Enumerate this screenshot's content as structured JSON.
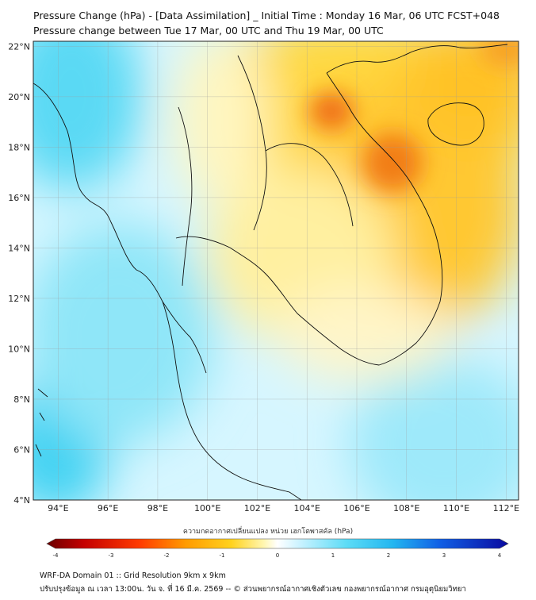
{
  "header": {
    "title_line1": "Pressure Change (hPa) - [Data Assimilation] _ Initial Time : Monday 16 Mar, 06 UTC FCST+048",
    "title_line2": "Pressure change between Tue 17 Mar, 00 UTC and Thu 19 Mar, 00 UTC"
  },
  "map": {
    "lon_range": [
      93,
      112.5
    ],
    "lat_range": [
      4,
      22.2
    ],
    "lat_labels": [
      "22°N",
      "20°N",
      "18°N",
      "16°N",
      "14°N",
      "12°N",
      "10°N",
      "8°N",
      "6°N",
      "4°N"
    ],
    "lon_labels": [
      "94°E",
      "96°E",
      "98°E",
      "100°E",
      "102°E",
      "104°E",
      "106°E",
      "108°E",
      "110°E",
      "112°E"
    ],
    "colors": {
      "ocean_base": "#bdeeff",
      "positive": "#40d8f4",
      "negative": "#ffb000",
      "strong_negative": "#f06a10"
    }
  },
  "colorbar": {
    "title": "ความกดอากาศเปลี่ยนแปลง หน่วย เฮกโตพาสคัล (hPa)",
    "ticks": [
      "-4",
      "-3",
      "-2",
      "-1",
      "0",
      "1",
      "2",
      "3",
      "4"
    ],
    "range": [
      -4,
      4
    ]
  },
  "footer": {
    "line1": "WRF-DA Domain 01 :: Grid Resolution 9km x 9km",
    "line2": "ปรับปรุงข้อมูล ณ เวลา 13:00น. วัน จ. ที่ 16 มี.ค. 2569 -- © ส่วนพยากรณ์อากาศเชิงตัวเลข กองพยากรณ์อากาศ กรมอุตุนิยมวิทยา"
  }
}
